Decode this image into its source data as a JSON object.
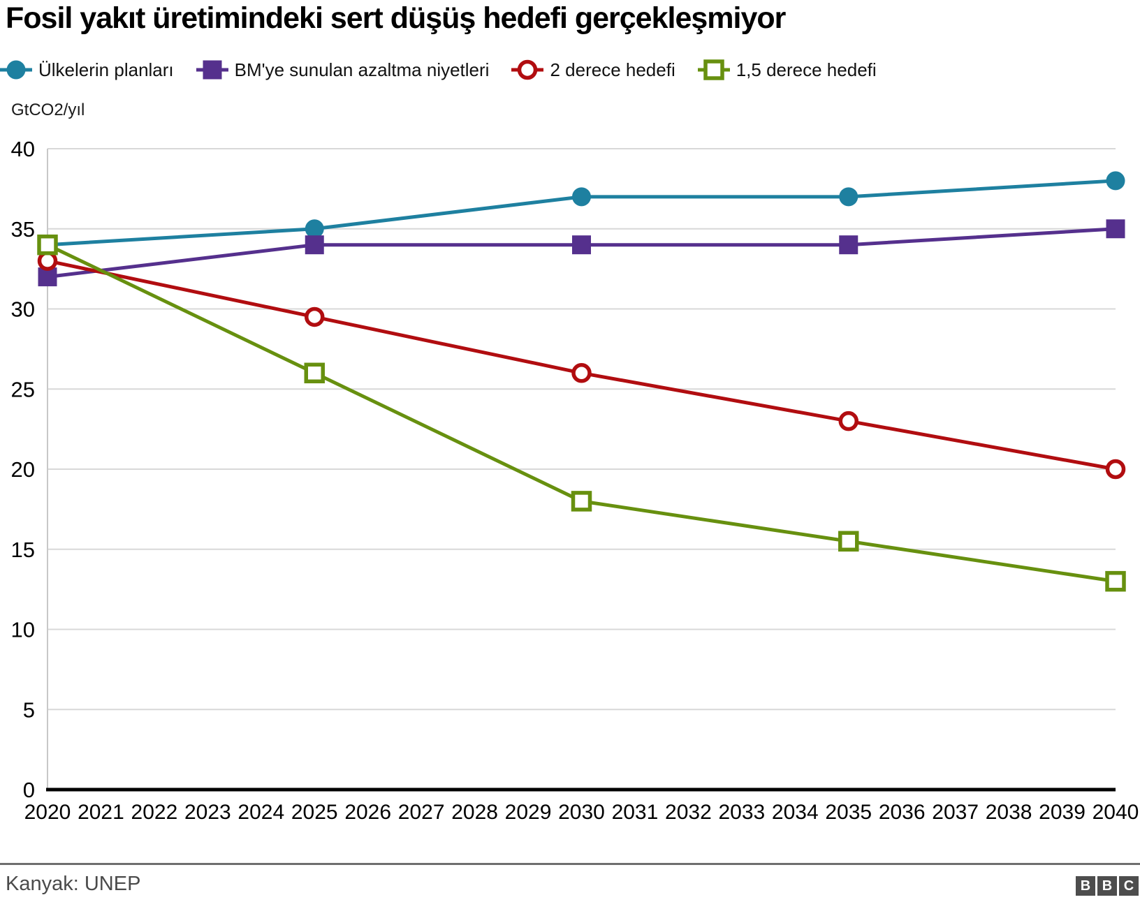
{
  "title": "Fosil yakıt üretimindeki sert düşüş hedefi gerçekleşmiyor",
  "legend": [
    {
      "label": "Ülkelerin planları",
      "marker": "circle-filled",
      "color": "#1e80a0"
    },
    {
      "label": "BM'ye sunulan azaltma niyetleri",
      "marker": "square-filled",
      "color": "#55308d"
    },
    {
      "label": "2 derece hedefi",
      "marker": "circle-open",
      "color": "#b10d10"
    },
    {
      "label": "1,5 derece hedefi",
      "marker": "square-open",
      "color": "#67900f"
    }
  ],
  "chart_data": {
    "type": "line",
    "title": "Fosil yakıt üretimindeki sert düşüş hedefi gerçekleşmiyor",
    "ylabel": "GtCO2/yıl",
    "xlabel": "",
    "ylim": [
      0,
      40
    ],
    "ytick_step": 5,
    "yticks": [
      0,
      5,
      10,
      15,
      20,
      25,
      30,
      35,
      40
    ],
    "xlim": [
      2020,
      2040
    ],
    "xticks": [
      2020,
      2021,
      2022,
      2023,
      2024,
      2025,
      2026,
      2027,
      2028,
      2029,
      2030,
      2031,
      2032,
      2033,
      2034,
      2035,
      2036,
      2037,
      2038,
      2039,
      2040
    ],
    "grid": true,
    "legend_position": "top",
    "x": [
      2020,
      2025,
      2030,
      2035,
      2040
    ],
    "series": [
      {
        "name": "Ülkelerin planları",
        "marker": "circle-filled",
        "color": "#1e80a0",
        "values": [
          34,
          35,
          37,
          37,
          38
        ]
      },
      {
        "name": "BM'ye sunulan azaltma niyetleri",
        "marker": "square-filled",
        "color": "#55308d",
        "values": [
          32,
          34,
          34,
          34,
          35
        ]
      },
      {
        "name": "2 derece hedefi",
        "marker": "circle-open",
        "color": "#b10d10",
        "values": [
          33,
          29.5,
          26,
          23,
          20
        ]
      },
      {
        "name": "1,5 derece hedefi",
        "marker": "square-open",
        "color": "#67900f",
        "values": [
          34,
          26,
          18,
          15.5,
          13
        ]
      }
    ]
  },
  "footer": {
    "source": "Kanyak: UNEP",
    "logo_letters": [
      "B",
      "B",
      "C"
    ]
  },
  "colors": {
    "grid": "#d8d8d8",
    "axis_left": "#c8c8c8",
    "axis_bottom": "#000000",
    "tick_text": "#000000",
    "divider": "#6e6e6e",
    "logo_block": "#4d4d4d"
  }
}
